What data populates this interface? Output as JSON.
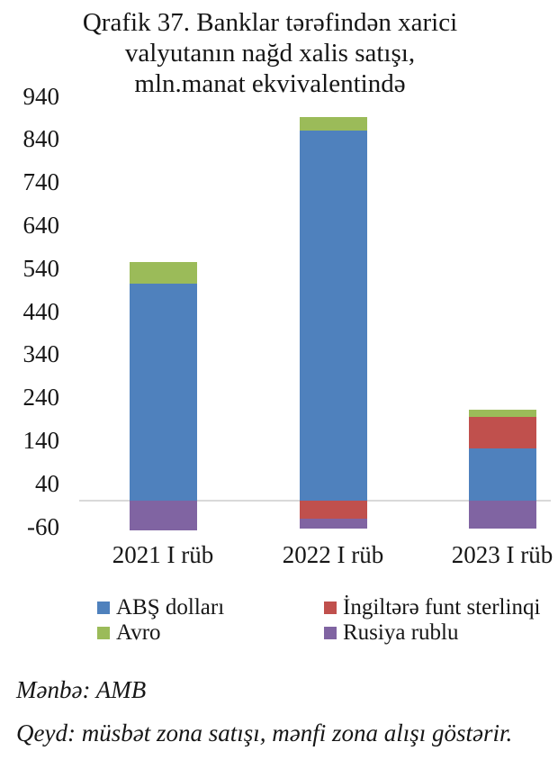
{
  "chart_data": {
    "type": "bar",
    "stacked": true,
    "title": "Qrafik 37. Banklar tərəfindən xarici valyutanın nağd xalis satışı, mln.manat ekvivalentində",
    "title_lines": [
      "Qrafik 37. Banklar tərəfindən xarici",
      "valyutanın nağd xalis satışı,",
      "mln.manat ekvivalentində"
    ],
    "categories": [
      "2021 I rüb",
      "2022 I rüb",
      "2023 I rüb"
    ],
    "series": [
      {
        "name": "ABŞ dolları",
        "color": "#4F81BD",
        "values": [
          505,
          860,
          121
        ]
      },
      {
        "name": "İngiltərə funt sterlinqi",
        "color": "#C0504D",
        "values": [
          0,
          -42,
          73
        ]
      },
      {
        "name": "Avro",
        "color": "#9BBB59",
        "values": [
          50,
          32,
          17
        ]
      },
      {
        "name": "Rusiya rublu",
        "color": "#8064A2",
        "values": [
          -68,
          -23,
          -65
        ]
      }
    ],
    "y_ticks": [
      940,
      840,
      740,
      640,
      540,
      440,
      340,
      240,
      140,
      40,
      -60
    ],
    "ylim": [
      -100,
      940
    ],
    "legend_position": "bottom",
    "gridlines": "zero-line-only",
    "axis_line_color": "#D9D9D9"
  },
  "footer": {
    "source": "Mənbə: AMB",
    "note": "Qeyd: müsbət zona satışı, mənfi zona alışı göstərir."
  }
}
